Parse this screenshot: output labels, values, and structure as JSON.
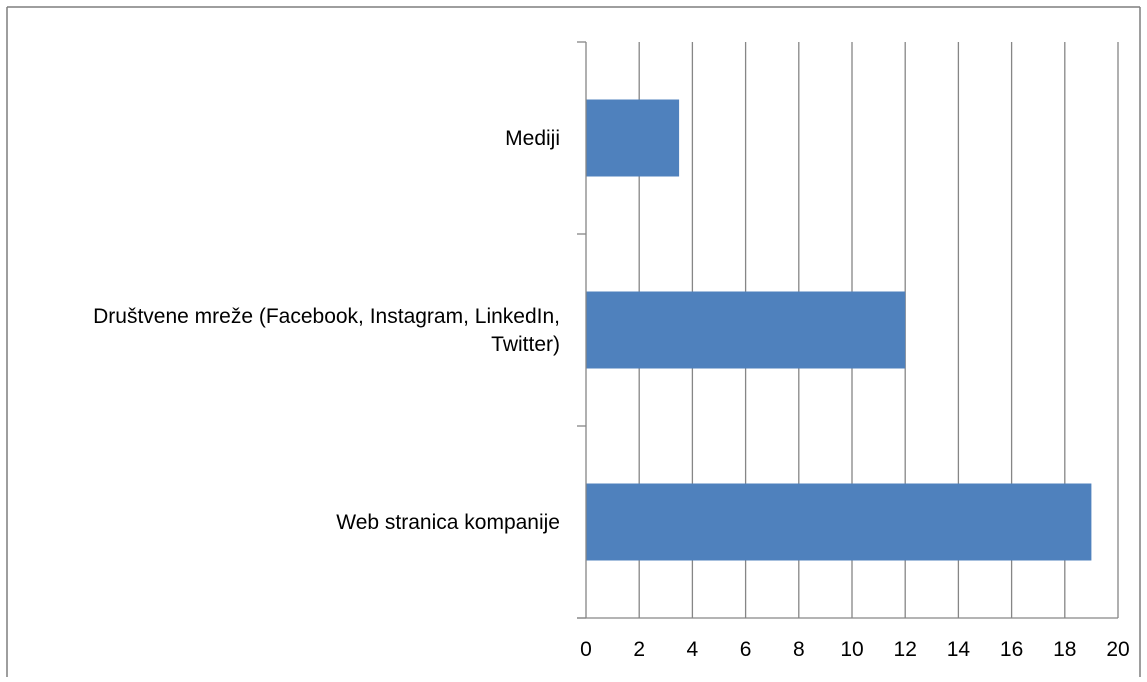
{
  "chart_data": {
    "type": "bar",
    "orientation": "horizontal",
    "title": "",
    "xlabel": "",
    "ylabel": "",
    "categories": [
      [
        "Web stranica kompanije"
      ],
      [
        "Društvene mreže (Facebook, Instagram, LinkedIn,",
        "Twitter)"
      ],
      [
        "Mediji"
      ]
    ],
    "values": [
      19,
      12,
      3.5
    ],
    "xlim": [
      0,
      20
    ],
    "xticks": [
      0,
      2,
      4,
      6,
      8,
      10,
      12,
      14,
      16,
      18,
      20
    ],
    "grid": "vertical",
    "legend": "none",
    "bar_color": "#4F81BD",
    "gridline_color": "#868686",
    "frame_color": "#7F7F7F"
  }
}
